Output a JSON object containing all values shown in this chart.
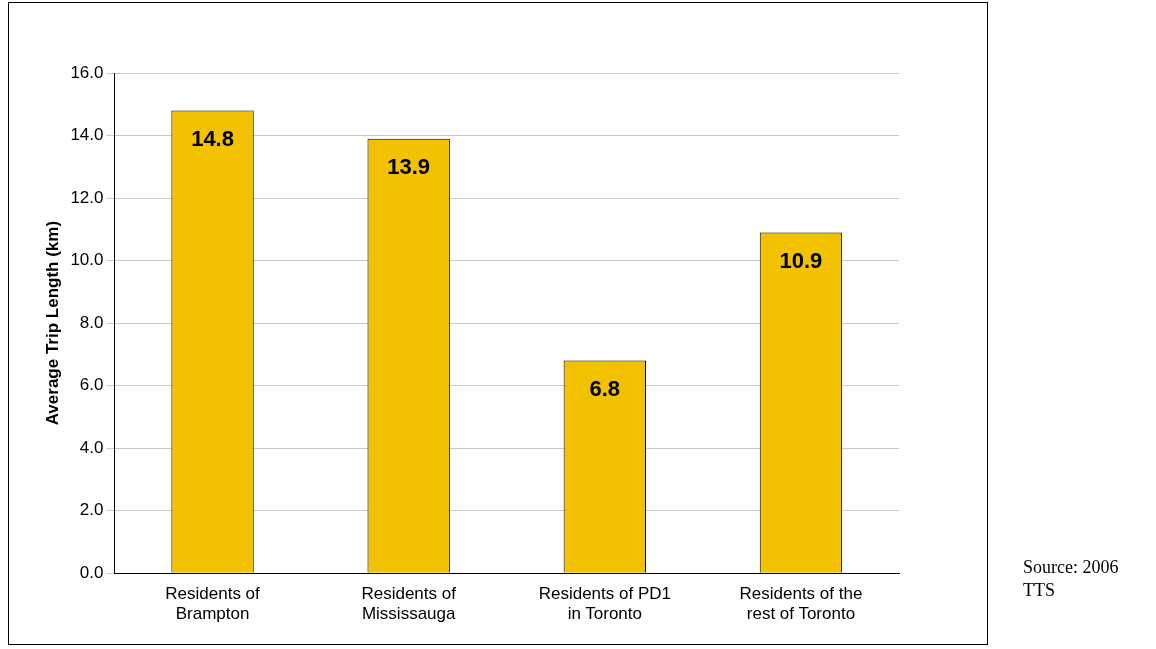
{
  "chart_data": {
    "type": "bar",
    "categories": [
      "Residents of\nBrampton",
      "Residents of\nMississauga",
      "Residents of PD1\nin Toronto",
      "Residents of the\nrest of Toronto"
    ],
    "values": [
      14.8,
      13.9,
      6.8,
      10.9
    ],
    "color": "#f2c200",
    "ylabel": "Average Trip Length (km)",
    "ylim": [
      0,
      16
    ],
    "yticks": [
      {
        "value": 0,
        "label": "0.0"
      },
      {
        "value": 2,
        "label": "2.0"
      },
      {
        "value": 4,
        "label": "4.0"
      },
      {
        "value": 6,
        "label": "6.0"
      },
      {
        "value": 8,
        "label": "8.0"
      },
      {
        "value": 10,
        "label": "10.0"
      },
      {
        "value": 12,
        "label": "12.0"
      },
      {
        "value": 14,
        "label": "14.0"
      },
      {
        "value": 16,
        "label": "16.0"
      }
    ],
    "grid": "y",
    "legend": false,
    "data_labels": true,
    "annotations": [
      "Source: 2006 TTS"
    ]
  }
}
